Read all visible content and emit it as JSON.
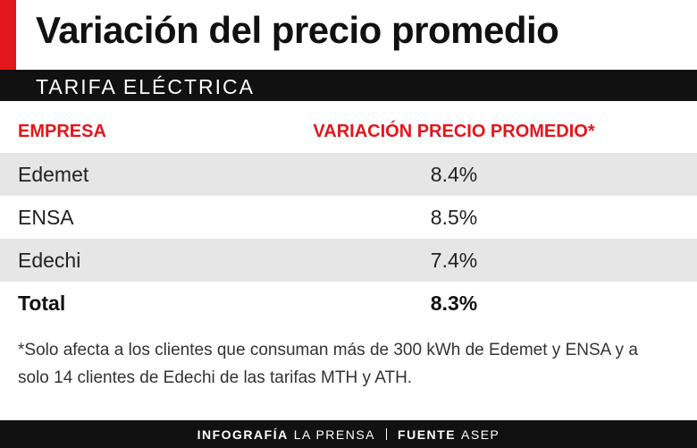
{
  "header": {
    "title": "Variación del precio promedio",
    "subtitle": "TARIFA ELÉCTRICA"
  },
  "table": {
    "columns": [
      "EMPRESA",
      "VARIACIÓN PRECIO PROMEDIO*"
    ],
    "rows": [
      [
        "Edemet",
        "8.4%"
      ],
      [
        "ENSA",
        "8.5%"
      ],
      [
        "Edechi",
        "7.4%"
      ]
    ],
    "total": [
      "Total",
      "8.3%"
    ]
  },
  "footnote": "*Solo afecta a los clientes que consuman más de 300 kWh de Edemet y ENSA y a solo 14 clientes de Edechi de las tarifas MTH y ATH.",
  "footer": {
    "credits": [
      {
        "label": "INFOGRAFÍA",
        "value": "LA PRENSA"
      },
      {
        "label": "FUENTE",
        "value": "ASEP"
      }
    ]
  }
}
